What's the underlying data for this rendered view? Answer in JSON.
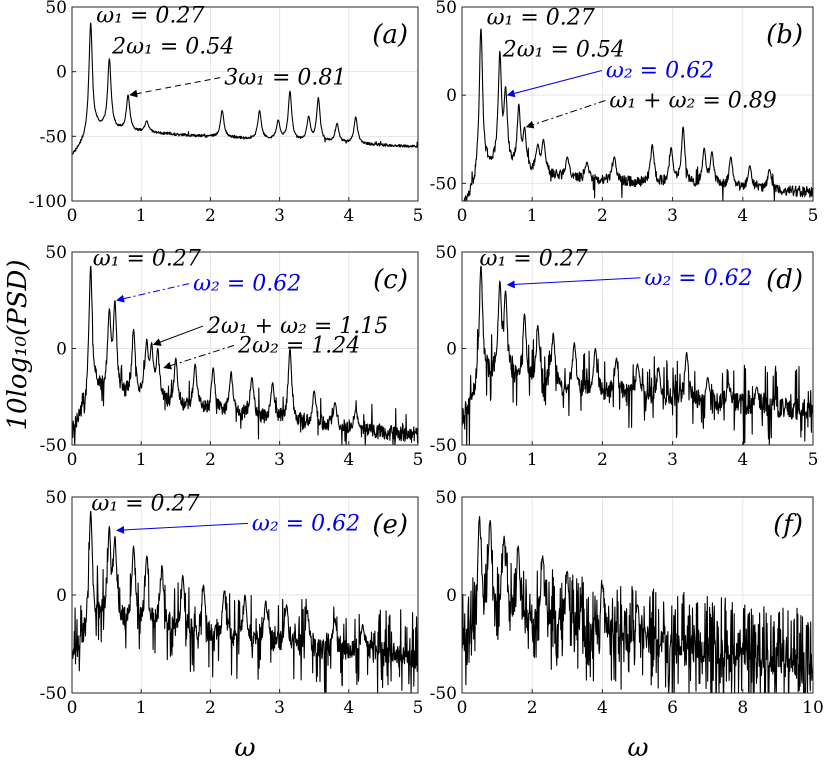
{
  "figure": {
    "ylabel": "10log₁₀(PSD)",
    "xlabel": "ω"
  },
  "chart_data": [
    {
      "type": "line",
      "panel": "(a)",
      "xlim": [
        0,
        5
      ],
      "ylim": [
        -100,
        50
      ],
      "xticks": [
        0,
        1,
        2,
        3,
        4,
        5
      ],
      "yticks": [
        -100,
        -50,
        0,
        50
      ],
      "grid": true,
      "floor": {
        "start": -40,
        "end": -58
      },
      "peaks": [
        [
          0.27,
          38
        ],
        [
          0.54,
          10
        ],
        [
          0.81,
          -18
        ],
        [
          1.08,
          -38
        ],
        [
          2.17,
          -30
        ],
        [
          2.71,
          -30
        ],
        [
          2.98,
          -38
        ],
        [
          3.15,
          -15
        ],
        [
          3.42,
          -35
        ],
        [
          3.56,
          -20
        ],
        [
          3.83,
          -40
        ],
        [
          4.1,
          -35
        ]
      ],
      "annotations": [
        {
          "text": "ω₁ = 0.27",
          "x": 0.35,
          "y": 38,
          "color": "#000000"
        },
        {
          "text": "2ω₁ = 0.54",
          "x": 0.58,
          "y": 14,
          "color": "#000000"
        },
        {
          "text": "3ω₁ = 0.81",
          "x": 2.2,
          "y": -10,
          "color": "#000000",
          "arrow_to": [
            0.81,
            -18
          ],
          "dash": "dashed"
        }
      ]
    },
    {
      "type": "line",
      "panel": "(b)",
      "xlim": [
        0,
        5
      ],
      "ylim": [
        -60,
        50
      ],
      "xticks": [
        0,
        1,
        2,
        3,
        4,
        5
      ],
      "yticks": [
        -50,
        0,
        50
      ],
      "grid": true,
      "floor": {
        "start": -40,
        "end": -55
      },
      "peaks": [
        [
          0.27,
          38
        ],
        [
          0.54,
          25
        ],
        [
          0.62,
          5
        ],
        [
          0.81,
          -5
        ],
        [
          0.89,
          -18
        ],
        [
          1.08,
          -28
        ],
        [
          1.16,
          -25
        ],
        [
          1.5,
          -35
        ],
        [
          1.78,
          -38
        ],
        [
          2.17,
          -35
        ],
        [
          2.71,
          -28
        ],
        [
          2.98,
          -30
        ],
        [
          3.15,
          -18
        ],
        [
          3.45,
          -30
        ],
        [
          3.56,
          -32
        ],
        [
          3.83,
          -35
        ],
        [
          4.1,
          -40
        ],
        [
          4.38,
          -42
        ]
      ],
      "annotations": [
        {
          "text": "ω₁ = 0.27",
          "x": 0.35,
          "y": 40,
          "color": "#000000"
        },
        {
          "text": "2ω₁ = 0.54",
          "x": 0.58,
          "y": 22,
          "color": "#000000"
        },
        {
          "text": "ω₂ = 0.62",
          "x": 2.05,
          "y": 10,
          "color": "#0000ee",
          "arrow_to": [
            0.62,
            0
          ],
          "dash": "solid"
        },
        {
          "text": "ω₁ + ω₂ = 0.89",
          "x": 2.1,
          "y": -7,
          "color": "#000000",
          "arrow_to": [
            0.89,
            -18
          ],
          "dash": "dashdot"
        }
      ]
    },
    {
      "type": "line",
      "panel": "(c)",
      "xlim": [
        0,
        5
      ],
      "ylim": [
        -50,
        50
      ],
      "xticks": [
        0,
        1,
        2,
        3,
        4,
        5
      ],
      "yticks": [
        -50,
        0,
        50
      ],
      "grid": true,
      "floor": {
        "start": -18,
        "end": -45
      },
      "peaks": [
        [
          0.27,
          43
        ],
        [
          0.54,
          20
        ],
        [
          0.62,
          25
        ],
        [
          0.89,
          10
        ],
        [
          1.08,
          5
        ],
        [
          1.15,
          3
        ],
        [
          1.24,
          0
        ],
        [
          1.5,
          -5
        ],
        [
          1.78,
          -8
        ],
        [
          2.04,
          -10
        ],
        [
          2.3,
          -12
        ],
        [
          2.6,
          -15
        ],
        [
          2.9,
          -18
        ],
        [
          3.15,
          0
        ],
        [
          3.5,
          -22
        ],
        [
          3.8,
          -28
        ],
        [
          4.1,
          -32
        ]
      ],
      "annotations": [
        {
          "text": "ω₁ = 0.27",
          "x": 0.3,
          "y": 43,
          "color": "#000000"
        },
        {
          "text": "ω₂ = 0.62",
          "x": 1.75,
          "y": 30,
          "color": "#0000ee",
          "arrow_to": [
            0.62,
            25
          ],
          "dash": "dashdot"
        },
        {
          "text": "2ω₁ + ω₂ = 1.15",
          "x": 1.95,
          "y": 8,
          "color": "#000000",
          "arrow_to": [
            1.15,
            2
          ],
          "dash": "solid"
        },
        {
          "text": "2ω₂ = 1.24",
          "x": 2.4,
          "y": -2,
          "color": "#000000",
          "arrow_to": [
            1.3,
            -10
          ],
          "dash": "dashdot"
        }
      ]
    },
    {
      "type": "line",
      "panel": "(d)",
      "xlim": [
        0,
        5
      ],
      "ylim": [
        -50,
        50
      ],
      "xticks": [
        0,
        1,
        2,
        3,
        4,
        5
      ],
      "yticks": [
        -50,
        0,
        50
      ],
      "grid": true,
      "floor": {
        "start": -12,
        "end": -32
      },
      "peaks": [
        [
          0.27,
          43
        ],
        [
          0.54,
          35
        ],
        [
          0.62,
          30
        ],
        [
          0.89,
          18
        ],
        [
          1.08,
          12
        ],
        [
          1.3,
          8
        ],
        [
          1.6,
          3
        ],
        [
          1.9,
          0
        ],
        [
          2.2,
          -5
        ],
        [
          2.5,
          -8
        ],
        [
          2.8,
          -10
        ],
        [
          3.2,
          -2
        ],
        [
          3.5,
          -15
        ],
        [
          3.8,
          -18
        ],
        [
          4.2,
          -20
        ]
      ],
      "annotations": [
        {
          "text": "ω₁ = 0.27",
          "x": 0.25,
          "y": 43,
          "color": "#000000"
        },
        {
          "text": "ω₂ = 0.62",
          "x": 2.6,
          "y": 33,
          "color": "#0000ee",
          "arrow_to": [
            0.62,
            33
          ],
          "dash": "solid"
        }
      ]
    },
    {
      "type": "line",
      "panel": "(e)",
      "xlim": [
        0,
        5
      ],
      "ylim": [
        -50,
        50
      ],
      "xticks": [
        0,
        1,
        2,
        3,
        4,
        5
      ],
      "yticks": [
        -50,
        0,
        50
      ],
      "grid": true,
      "floor": {
        "start": -8,
        "end": -32
      },
      "peaks": [
        [
          0.27,
          43
        ],
        [
          0.54,
          35
        ],
        [
          0.62,
          30
        ],
        [
          0.89,
          25
        ],
        [
          1.08,
          20
        ],
        [
          1.3,
          15
        ],
        [
          1.6,
          10
        ],
        [
          1.9,
          5
        ],
        [
          2.2,
          2
        ],
        [
          2.5,
          0
        ],
        [
          2.8,
          -3
        ],
        [
          3.1,
          -5
        ],
        [
          3.4,
          -8
        ],
        [
          3.8,
          -12
        ],
        [
          4.2,
          -15
        ]
      ],
      "annotations": [
        {
          "text": "ω₁ = 0.27",
          "x": 0.28,
          "y": 43,
          "color": "#000000"
        },
        {
          "text": "ω₂ = 0.62",
          "x": 2.6,
          "y": 33,
          "color": "#0000ee",
          "arrow_to": [
            0.62,
            33
          ],
          "dash": "solid"
        }
      ]
    },
    {
      "type": "line",
      "panel": "(f)",
      "xlim": [
        0,
        10
      ],
      "ylim": [
        -50,
        50
      ],
      "xticks": [
        0,
        2,
        4,
        6,
        8,
        10
      ],
      "yticks": [
        -50,
        0,
        50
      ],
      "grid": true,
      "floor": {
        "start": 0,
        "end": -35
      },
      "peaks": [
        [
          0.5,
          40
        ],
        [
          0.8,
          38
        ],
        [
          1.2,
          30
        ],
        [
          1.6,
          25
        ],
        [
          2.3,
          20
        ],
        [
          3.0,
          12
        ],
        [
          4.0,
          5
        ],
        [
          5.0,
          -5
        ]
      ],
      "annotations": []
    }
  ]
}
